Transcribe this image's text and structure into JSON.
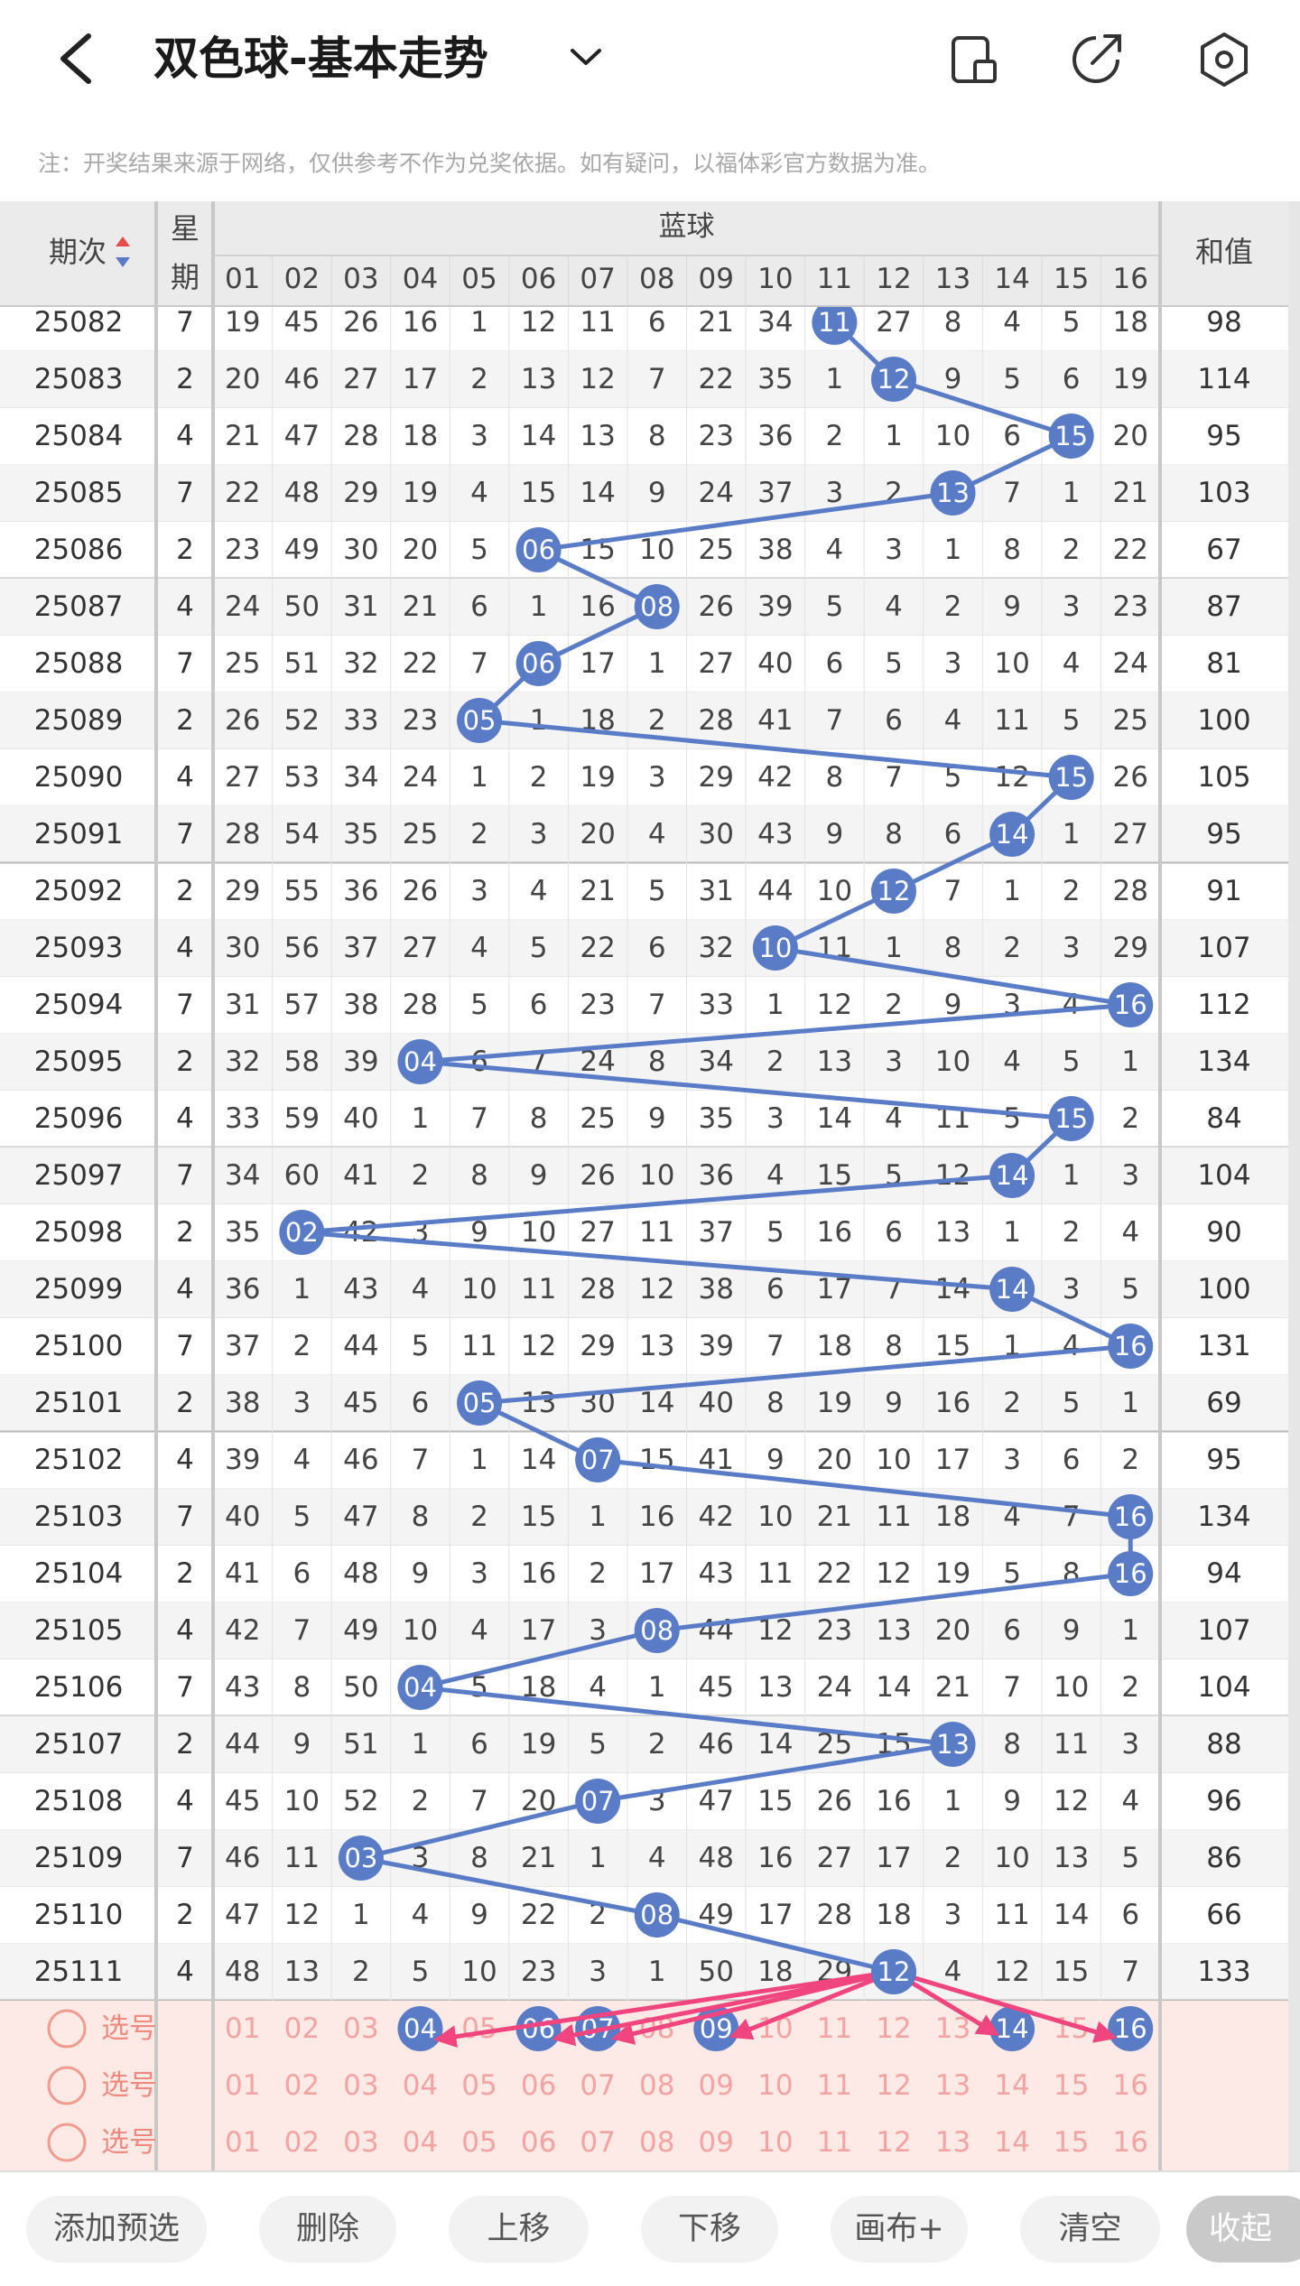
{
  "header": {
    "title": "双色球-基本走势",
    "note": "注：开奖结果来源于网络，仅供参考不作为兑奖依据。如有疑问，以福体彩官方数据为准。"
  },
  "table": {
    "period_label": "期次",
    "weekday_label": "星期",
    "group_label": "蓝球",
    "sum_label": "和值",
    "columns": [
      "01",
      "02",
      "03",
      "04",
      "05",
      "06",
      "07",
      "08",
      "09",
      "10",
      "11",
      "12",
      "13",
      "14",
      "15",
      "16"
    ],
    "rows": [
      {
        "period": 25082,
        "weekday": 7,
        "cells": [
          19,
          45,
          26,
          16,
          1,
          12,
          11,
          6,
          21,
          34,
          {
            "label": "11",
            "drawn": true
          },
          27,
          8,
          4,
          5,
          18
        ],
        "sum": 98
      },
      {
        "period": 25083,
        "weekday": 2,
        "cells": [
          20,
          46,
          27,
          17,
          2,
          13,
          12,
          7,
          22,
          35,
          1,
          {
            "label": "12",
            "drawn": true
          },
          9,
          5,
          6,
          19
        ],
        "sum": 114
      },
      {
        "period": 25084,
        "weekday": 4,
        "cells": [
          21,
          47,
          28,
          18,
          3,
          14,
          13,
          8,
          23,
          36,
          2,
          1,
          10,
          6,
          {
            "label": "15",
            "drawn": true
          },
          20
        ],
        "sum": 95
      },
      {
        "period": 25085,
        "weekday": 7,
        "cells": [
          22,
          48,
          29,
          19,
          4,
          15,
          14,
          9,
          24,
          37,
          3,
          2,
          {
            "label": "13",
            "drawn": true
          },
          7,
          1,
          21
        ],
        "sum": 103
      },
      {
        "period": 25086,
        "weekday": 2,
        "cells": [
          23,
          49,
          30,
          20,
          5,
          {
            "label": "06",
            "drawn": true
          },
          15,
          10,
          25,
          38,
          4,
          3,
          1,
          8,
          2,
          22
        ],
        "sum": 67
      },
      {
        "period": 25087,
        "weekday": 4,
        "cells": [
          24,
          50,
          31,
          21,
          6,
          1,
          16,
          {
            "label": "08",
            "drawn": true
          },
          26,
          39,
          5,
          4,
          2,
          9,
          3,
          23
        ],
        "sum": 87
      },
      {
        "period": 25088,
        "weekday": 7,
        "cells": [
          25,
          51,
          32,
          22,
          7,
          {
            "label": "06",
            "drawn": true
          },
          17,
          1,
          27,
          40,
          6,
          5,
          3,
          10,
          4,
          24
        ],
        "sum": 81
      },
      {
        "period": 25089,
        "weekday": 2,
        "cells": [
          26,
          52,
          33,
          23,
          {
            "label": "05",
            "drawn": true
          },
          1,
          18,
          2,
          28,
          41,
          7,
          6,
          4,
          11,
          5,
          25
        ],
        "sum": 100
      },
      {
        "period": 25090,
        "weekday": 4,
        "cells": [
          27,
          53,
          34,
          24,
          1,
          2,
          19,
          3,
          29,
          42,
          8,
          7,
          5,
          12,
          {
            "label": "15",
            "drawn": true
          },
          26
        ],
        "sum": 105
      },
      {
        "period": 25091,
        "weekday": 7,
        "cells": [
          28,
          54,
          35,
          25,
          2,
          3,
          20,
          4,
          30,
          43,
          9,
          8,
          6,
          {
            "label": "14",
            "drawn": true
          },
          1,
          27
        ],
        "sum": 95
      },
      {
        "period": 25092,
        "weekday": 2,
        "cells": [
          29,
          55,
          36,
          26,
          3,
          4,
          21,
          5,
          31,
          44,
          10,
          {
            "label": "12",
            "drawn": true
          },
          7,
          1,
          2,
          28
        ],
        "sum": 91
      },
      {
        "period": 25093,
        "weekday": 4,
        "cells": [
          30,
          56,
          37,
          27,
          4,
          5,
          22,
          6,
          32,
          {
            "label": "10",
            "drawn": true
          },
          11,
          1,
          8,
          2,
          3,
          29
        ],
        "sum": 107
      },
      {
        "period": 25094,
        "weekday": 7,
        "cells": [
          31,
          57,
          38,
          28,
          5,
          6,
          23,
          7,
          33,
          1,
          12,
          2,
          9,
          3,
          4,
          {
            "label": "16",
            "drawn": true
          }
        ],
        "sum": 112
      },
      {
        "period": 25095,
        "weekday": 2,
        "cells": [
          32,
          58,
          39,
          {
            "label": "04",
            "drawn": true
          },
          6,
          7,
          24,
          8,
          34,
          2,
          13,
          3,
          10,
          4,
          5,
          1
        ],
        "sum": 134
      },
      {
        "period": 25096,
        "weekday": 4,
        "cells": [
          33,
          59,
          40,
          1,
          7,
          8,
          25,
          9,
          35,
          3,
          14,
          4,
          11,
          5,
          {
            "label": "15",
            "drawn": true
          },
          2
        ],
        "sum": 84
      },
      {
        "period": 25097,
        "weekday": 7,
        "cells": [
          34,
          60,
          41,
          2,
          8,
          9,
          26,
          10,
          36,
          4,
          15,
          5,
          12,
          {
            "label": "14",
            "drawn": true
          },
          1,
          3
        ],
        "sum": 104
      },
      {
        "period": 25098,
        "weekday": 2,
        "cells": [
          35,
          {
            "label": "02",
            "drawn": true
          },
          42,
          3,
          9,
          10,
          27,
          11,
          37,
          5,
          16,
          6,
          13,
          1,
          2,
          4
        ],
        "sum": 90
      },
      {
        "period": 25099,
        "weekday": 4,
        "cells": [
          36,
          1,
          43,
          4,
          10,
          11,
          28,
          12,
          38,
          6,
          17,
          7,
          14,
          {
            "label": "14",
            "drawn": true
          },
          3,
          5
        ],
        "sum": 100
      },
      {
        "period": 25100,
        "weekday": 7,
        "cells": [
          37,
          2,
          44,
          5,
          11,
          12,
          29,
          13,
          39,
          7,
          18,
          8,
          15,
          1,
          4,
          {
            "label": "16",
            "drawn": true
          }
        ],
        "sum": 131
      },
      {
        "period": 25101,
        "weekday": 2,
        "cells": [
          38,
          3,
          45,
          6,
          {
            "label": "05",
            "drawn": true
          },
          13,
          30,
          14,
          40,
          8,
          19,
          9,
          16,
          2,
          5,
          1
        ],
        "sum": 69
      },
      {
        "period": 25102,
        "weekday": 4,
        "cells": [
          39,
          4,
          46,
          7,
          1,
          14,
          {
            "label": "07",
            "drawn": true
          },
          15,
          41,
          9,
          20,
          10,
          17,
          3,
          6,
          2
        ],
        "sum": 95
      },
      {
        "period": 25103,
        "weekday": 7,
        "cells": [
          40,
          5,
          47,
          8,
          2,
          15,
          1,
          16,
          42,
          10,
          21,
          11,
          18,
          4,
          7,
          {
            "label": "16",
            "drawn": true
          }
        ],
        "sum": 134
      },
      {
        "period": 25104,
        "weekday": 2,
        "cells": [
          41,
          6,
          48,
          9,
          3,
          16,
          2,
          17,
          43,
          11,
          22,
          12,
          19,
          5,
          8,
          {
            "label": "16",
            "drawn": true
          }
        ],
        "sum": 94
      },
      {
        "period": 25105,
        "weekday": 4,
        "cells": [
          42,
          7,
          49,
          10,
          4,
          17,
          3,
          {
            "label": "08",
            "drawn": true
          },
          44,
          12,
          23,
          13,
          20,
          6,
          9,
          1
        ],
        "sum": 107
      },
      {
        "period": 25106,
        "weekday": 7,
        "cells": [
          43,
          8,
          50,
          {
            "label": "04",
            "drawn": true
          },
          5,
          18,
          4,
          1,
          45,
          13,
          24,
          14,
          21,
          7,
          10,
          2
        ],
        "sum": 104
      },
      {
        "period": 25107,
        "weekday": 2,
        "cells": [
          44,
          9,
          51,
          1,
          6,
          19,
          5,
          2,
          46,
          14,
          25,
          15,
          {
            "label": "13",
            "drawn": true
          },
          8,
          11,
          3
        ],
        "sum": 88
      },
      {
        "period": 25108,
        "weekday": 4,
        "cells": [
          45,
          10,
          52,
          2,
          7,
          20,
          {
            "label": "07",
            "drawn": true
          },
          3,
          47,
          15,
          26,
          16,
          1,
          9,
          12,
          4
        ],
        "sum": 96
      },
      {
        "period": 25109,
        "weekday": 7,
        "cells": [
          46,
          11,
          {
            "label": "03",
            "drawn": true
          },
          3,
          8,
          21,
          1,
          4,
          48,
          16,
          27,
          17,
          2,
          10,
          13,
          5
        ],
        "sum": 86
      },
      {
        "period": 25110,
        "weekday": 2,
        "cells": [
          47,
          12,
          1,
          4,
          9,
          22,
          2,
          {
            "label": "08",
            "drawn": true
          },
          49,
          17,
          28,
          18,
          3,
          11,
          14,
          6
        ],
        "sum": 66
      },
      {
        "period": 25111,
        "weekday": 4,
        "cells": [
          48,
          13,
          2,
          5,
          10,
          23,
          3,
          1,
          50,
          18,
          29,
          {
            "label": "12",
            "drawn": true
          },
          4,
          12,
          15,
          7
        ],
        "sum": 133
      }
    ]
  },
  "selection": {
    "rows": [
      {
        "label": "选号",
        "numbers": [
          "01",
          "02",
          "03",
          {
            "label": "04",
            "picked": true
          },
          "05",
          {
            "label": "06",
            "picked": true
          },
          {
            "label": "07",
            "picked": true
          },
          "08",
          {
            "label": "09",
            "picked": true
          },
          "10",
          "11",
          "12",
          "13",
          {
            "label": "14",
            "picked": true
          },
          "15",
          {
            "label": "16",
            "picked": true
          }
        ]
      },
      {
        "label": "选号",
        "numbers": [
          "01",
          "02",
          "03",
          "04",
          "05",
          "06",
          "07",
          "08",
          "09",
          "10",
          "11",
          "12",
          "13",
          "14",
          "15",
          "16"
        ]
      },
      {
        "label": "选号",
        "numbers": [
          "01",
          "02",
          "03",
          "04",
          "05",
          "06",
          "07",
          "08",
          "09",
          "10",
          "11",
          "12",
          "13",
          "14",
          "15",
          "16"
        ]
      }
    ]
  },
  "buttons": [
    "添加预选",
    "删除",
    "上移",
    "下移",
    "画布+",
    "清空",
    "收起"
  ]
}
